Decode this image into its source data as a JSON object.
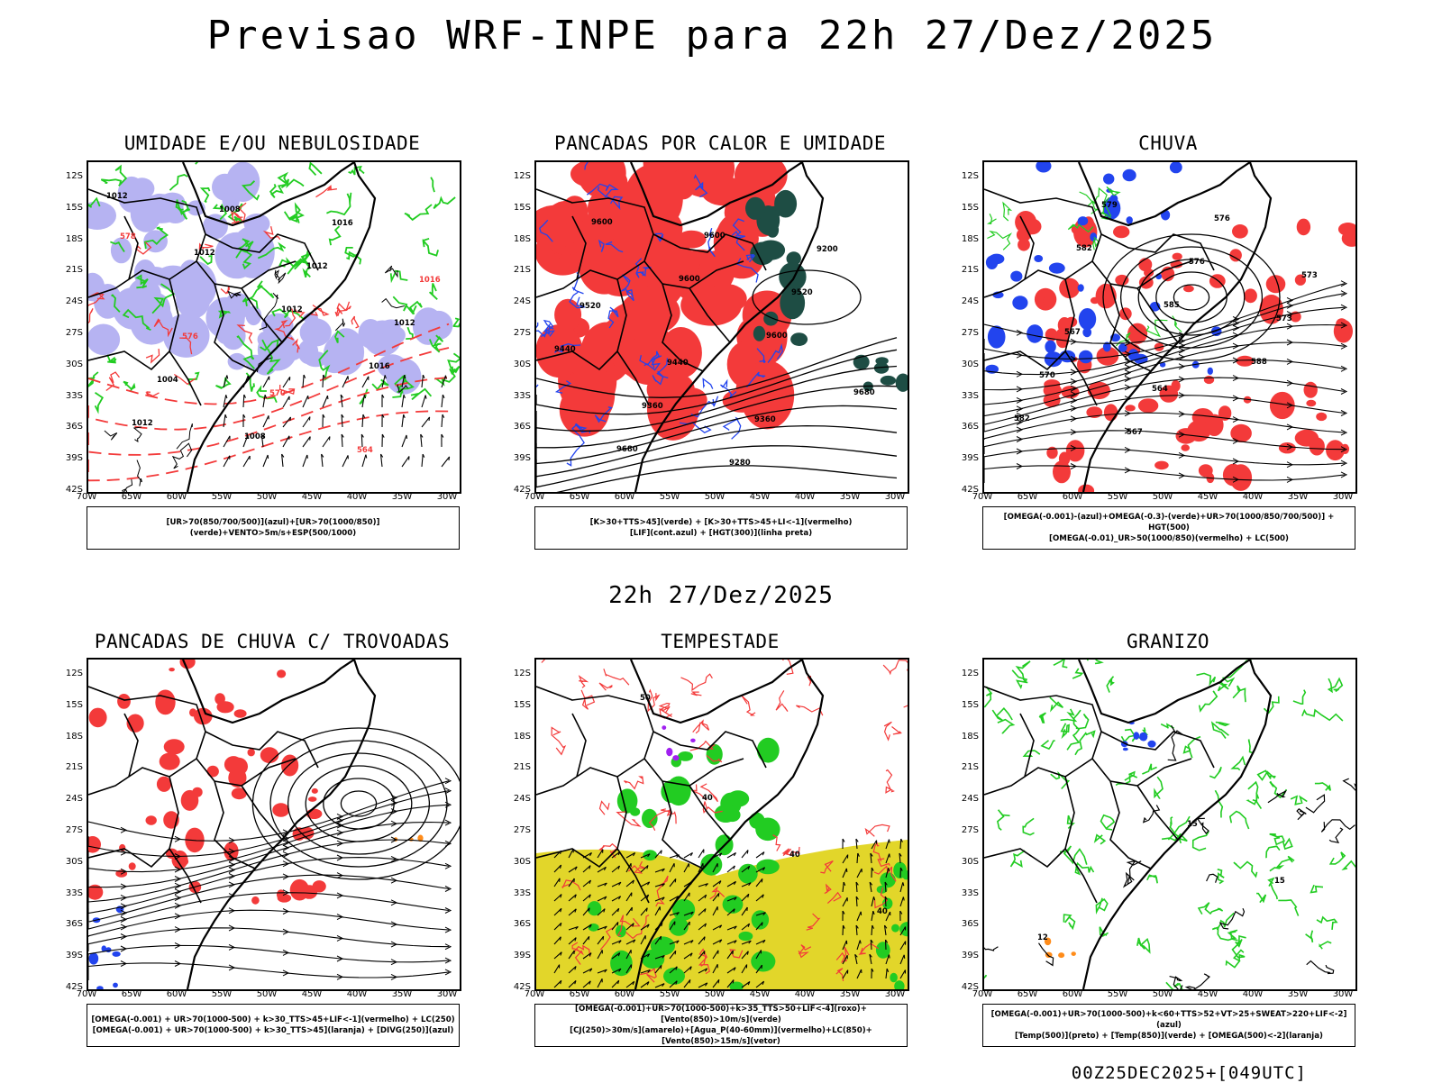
{
  "page": {
    "title": "Previsao WRF-INPE  para 22h 27/Dez/2025",
    "middle_time": "22h 27/Dez/2025",
    "footer": "00Z25DEC2025+[049UTC]"
  },
  "axes": {
    "lat_ticks": [
      "12S",
      "15S",
      "18S",
      "21S",
      "24S",
      "27S",
      "30S",
      "33S",
      "36S",
      "39S",
      "42S"
    ],
    "lon_ticks": [
      "70W",
      "65W",
      "60W",
      "55W",
      "50W",
      "45W",
      "40W",
      "35W",
      "30W"
    ]
  },
  "colors": {
    "red": "#f33a3a",
    "green": "#22cc22",
    "blue": "#2244ee",
    "lavender": "#b6b3f2",
    "yellow": "#e2d62a",
    "darkteal": "#1e4d44",
    "contour": "#000000",
    "orange": "#ff8c1a",
    "purple": "#a020f0"
  },
  "chart_data": [
    {
      "type": "contour_map",
      "title": "UMIDADE E/OU NEBULOSIDADE",
      "legend": [
        "[UR>70(850/700/500)](azul)+[UR>70(1000/850)](verde)+VENTO>5m/s+ESP(500/1000)"
      ],
      "contour_labels": [
        "1012",
        "1012",
        "1012",
        "1016",
        "1012",
        "1008",
        "1012",
        "1012",
        "1004",
        "1008",
        "1016",
        "1016",
        "576",
        "570",
        "564",
        "578"
      ]
    },
    {
      "type": "contour_map",
      "title": "PANCADAS POR CALOR E UMIDADE",
      "legend": [
        "[K>30+TTS>45](verde) + [K>30+TTS>45+LI<-1](vermelho)",
        "[LIF](cont.azul) + [HGT(300)](linha preta)"
      ],
      "contour_labels": [
        "9600",
        "9600",
        "9600",
        "9680",
        "9680",
        "9600",
        "9520",
        "9440",
        "9360",
        "9280",
        "9200",
        "9520",
        "9440",
        "9360"
      ]
    },
    {
      "type": "contour_map",
      "title": "CHUVA",
      "legend": [
        "[OMEGA(-0.001)-(azul)+OMEGA(-0.3)-(verde)+UR>70(1000/850/700/500)] + HGT(500)",
        "[OMEGA(-0.01)_UR>50(1000/850)(vermelho) + LC(500)"
      ],
      "contour_labels": [
        "582",
        "585",
        "588",
        "582",
        "579",
        "576",
        "573",
        "570",
        "567",
        "576",
        "573",
        "567",
        "564"
      ]
    },
    {
      "type": "contour_map",
      "title": "PANCADAS DE CHUVA C/ TROVOADAS",
      "legend": [
        "[OMEGA(-0.001) + UR>70(1000-500) + k>30_TTS>45+LIF<-1](vermelho) + LC(250)",
        "[OMEGA(-0.001) + UR>70(1000-500) + k>30_TTS>45](laranja) + [DIVG(250)](azul)"
      ],
      "contour_labels": []
    },
    {
      "type": "contour_map",
      "title": "TEMPESTADE",
      "legend": [
        "[OMEGA(-0.001)+UR>70(1000-500)+k>35_TTS>50+LIF<-4](roxo)+[Vento(850)>10m/s](verde)",
        "[CJ(250)>30m/s](amarelo)+[Agua_P(40-60mm)](vermelho)+LC(850)+[Vento(850)>15m/s](vetor)"
      ],
      "contour_labels": [
        "40",
        "40",
        "40",
        "50"
      ]
    },
    {
      "type": "contour_map",
      "title": "GRANIZO",
      "legend": [
        "[OMEGA(-0.001)+UR>70(1000-500)+k<60+TTS>52+VT>25+SWEAT>220+LIF<-2](azul)",
        "[Temp(500)](preto) + [Temp(850)](verde) + [OMEGA(500)<-2](laranja)"
      ],
      "contour_labels": [
        "15",
        "15",
        "12"
      ]
    }
  ]
}
